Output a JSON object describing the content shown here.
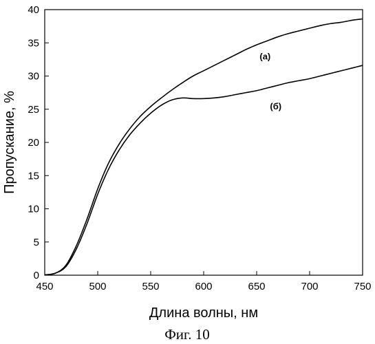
{
  "chart_data": {
    "type": "line",
    "xlabel": "Длина волны, нм",
    "ylabel": "Пропускание, %",
    "xlim": [
      450,
      750
    ],
    "ylim": [
      0,
      40
    ],
    "xticks": [
      450,
      500,
      550,
      600,
      650,
      700,
      750
    ],
    "yticks": [
      0,
      5,
      10,
      15,
      20,
      25,
      30,
      35,
      40
    ],
    "grid": false,
    "legend": "none",
    "series": [
      {
        "name": "(а)",
        "color": "#000000",
        "x": [
          450,
          460,
          470,
          480,
          490,
          500,
          510,
          520,
          530,
          540,
          550,
          560,
          570,
          580,
          590,
          600,
          610,
          620,
          630,
          640,
          650,
          660,
          670,
          680,
          690,
          700,
          710,
          720,
          730,
          740,
          750
        ],
        "y": [
          0.05,
          0.3,
          1.5,
          4.5,
          8.5,
          13.0,
          16.8,
          19.7,
          22.0,
          23.9,
          25.4,
          26.7,
          27.9,
          29.0,
          30.0,
          30.8,
          31.6,
          32.4,
          33.2,
          34.0,
          34.7,
          35.3,
          35.9,
          36.4,
          36.8,
          37.2,
          37.6,
          37.9,
          38.1,
          38.4,
          38.6
        ]
      },
      {
        "name": "(б)",
        "color": "#000000",
        "x": [
          450,
          460,
          470,
          480,
          490,
          500,
          510,
          520,
          530,
          540,
          550,
          560,
          570,
          580,
          590,
          600,
          610,
          620,
          630,
          640,
          650,
          660,
          670,
          680,
          690,
          700,
          710,
          720,
          730,
          740,
          750
        ],
        "y": [
          0.05,
          0.3,
          1.3,
          4.0,
          7.8,
          12.2,
          15.9,
          18.8,
          21.1,
          22.9,
          24.4,
          25.6,
          26.4,
          26.7,
          26.6,
          26.6,
          26.7,
          26.9,
          27.2,
          27.5,
          27.8,
          28.2,
          28.6,
          29.0,
          29.3,
          29.6,
          30.0,
          30.4,
          30.8,
          31.2,
          31.6
        ]
      }
    ],
    "annotations": [
      {
        "text": "(а)",
        "x": 658,
        "y": 32.5
      },
      {
        "text": "(б)",
        "x": 668,
        "y": 25.0
      }
    ],
    "caption": "Фиг. 10"
  }
}
